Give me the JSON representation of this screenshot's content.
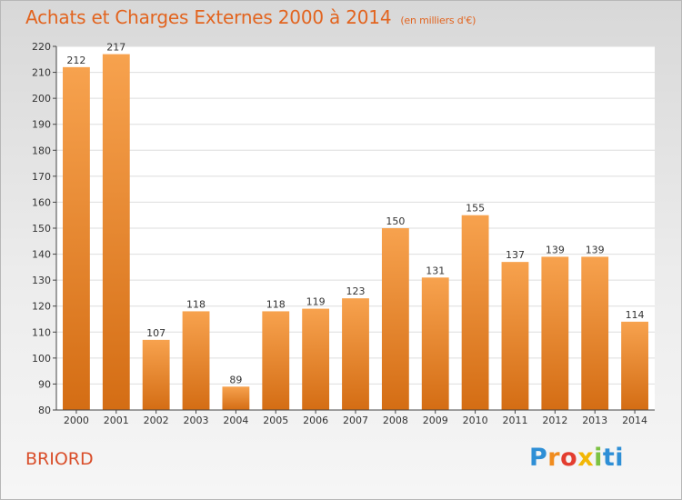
{
  "header": {
    "title": "Achats et Charges Externes 2000 à 2014",
    "subtitle": "(en milliers d'€)"
  },
  "footer": {
    "commune": "BRIORD",
    "logo_letters": [
      "P",
      "r",
      "o",
      "x",
      "i",
      "t",
      "i"
    ]
  },
  "colors": {
    "title": "#e2641f",
    "bar_top": "#f7a24e",
    "bar_bottom": "#d46d14",
    "axis": "#444444"
  },
  "chart_data": {
    "type": "bar",
    "categories": [
      "2000",
      "2001",
      "2002",
      "2003",
      "2004",
      "2005",
      "2006",
      "2007",
      "2008",
      "2009",
      "2010",
      "2011",
      "2012",
      "2013",
      "2014"
    ],
    "values": [
      212,
      217,
      107,
      118,
      89,
      118,
      119,
      123,
      150,
      131,
      155,
      137,
      139,
      139,
      114
    ],
    "title": "Achats et Charges Externes 2000 à 2014",
    "xlabel": "",
    "ylabel": "",
    "ylim": [
      80,
      220
    ],
    "yticks": [
      80,
      90,
      100,
      110,
      120,
      130,
      140,
      150,
      160,
      170,
      180,
      190,
      200,
      210,
      220
    ],
    "grid": true,
    "legend": "none"
  }
}
